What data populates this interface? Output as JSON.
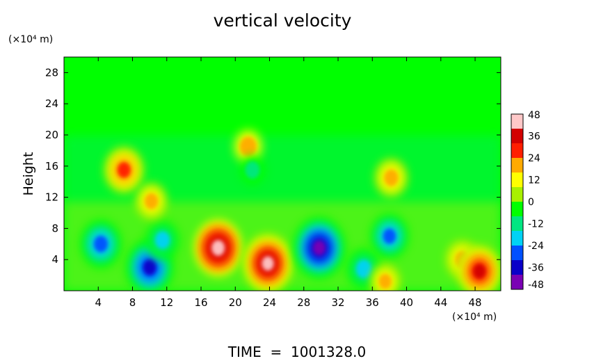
{
  "chart_data": {
    "type": "heatmap",
    "title": "vertical velocity",
    "ylabel": "Height",
    "y_unit": "(×10⁴ m)",
    "x_unit": "(×10⁴ m)",
    "xlim": [
      0,
      51
    ],
    "ylim": [
      0,
      30
    ],
    "x_ticks": [
      4,
      8,
      12,
      16,
      20,
      24,
      28,
      32,
      36,
      40,
      44,
      48
    ],
    "y_ticks": [
      4,
      8,
      12,
      16,
      20,
      24,
      28
    ],
    "colorbar": {
      "ticks": [
        48,
        36,
        24,
        12,
        0,
        -12,
        -24,
        -36,
        -48
      ],
      "range": [
        -48,
        48
      ],
      "colors": [
        "#7a00b4",
        "#0a00c8",
        "#0050ff",
        "#00d2f5",
        "#00e682",
        "#00ff00",
        "#a8f000",
        "#ffff00",
        "#ffaa00",
        "#ff1e00",
        "#d20000",
        "#ffc8c8"
      ]
    },
    "background_value": 0,
    "features": [
      {
        "x": 4.3,
        "y": 6.0,
        "value": -32
      },
      {
        "x": 10.0,
        "y": 3.0,
        "value": -40
      },
      {
        "x": 11.5,
        "y": 6.5,
        "value": -22
      },
      {
        "x": 18.0,
        "y": 5.5,
        "value": 40
      },
      {
        "x": 23.8,
        "y": 3.5,
        "value": 44
      },
      {
        "x": 29.8,
        "y": 5.5,
        "value": -46
      },
      {
        "x": 38.0,
        "y": 7.0,
        "value": -28
      },
      {
        "x": 35.0,
        "y": 2.8,
        "value": -24
      },
      {
        "x": 37.5,
        "y": 1.2,
        "value": 18
      },
      {
        "x": 46.5,
        "y": 4.0,
        "value": 22
      },
      {
        "x": 48.5,
        "y": 2.5,
        "value": 36
      },
      {
        "x": 7.0,
        "y": 15.5,
        "value": 30
      },
      {
        "x": 21.5,
        "y": 18.5,
        "value": 16
      },
      {
        "x": 38.2,
        "y": 14.5,
        "value": 22
      },
      {
        "x": 10.2,
        "y": 11.5,
        "value": 20
      },
      {
        "x": 22.0,
        "y": 15.5,
        "value": -12
      }
    ],
    "footer": "TIME  =  1001328.0"
  }
}
